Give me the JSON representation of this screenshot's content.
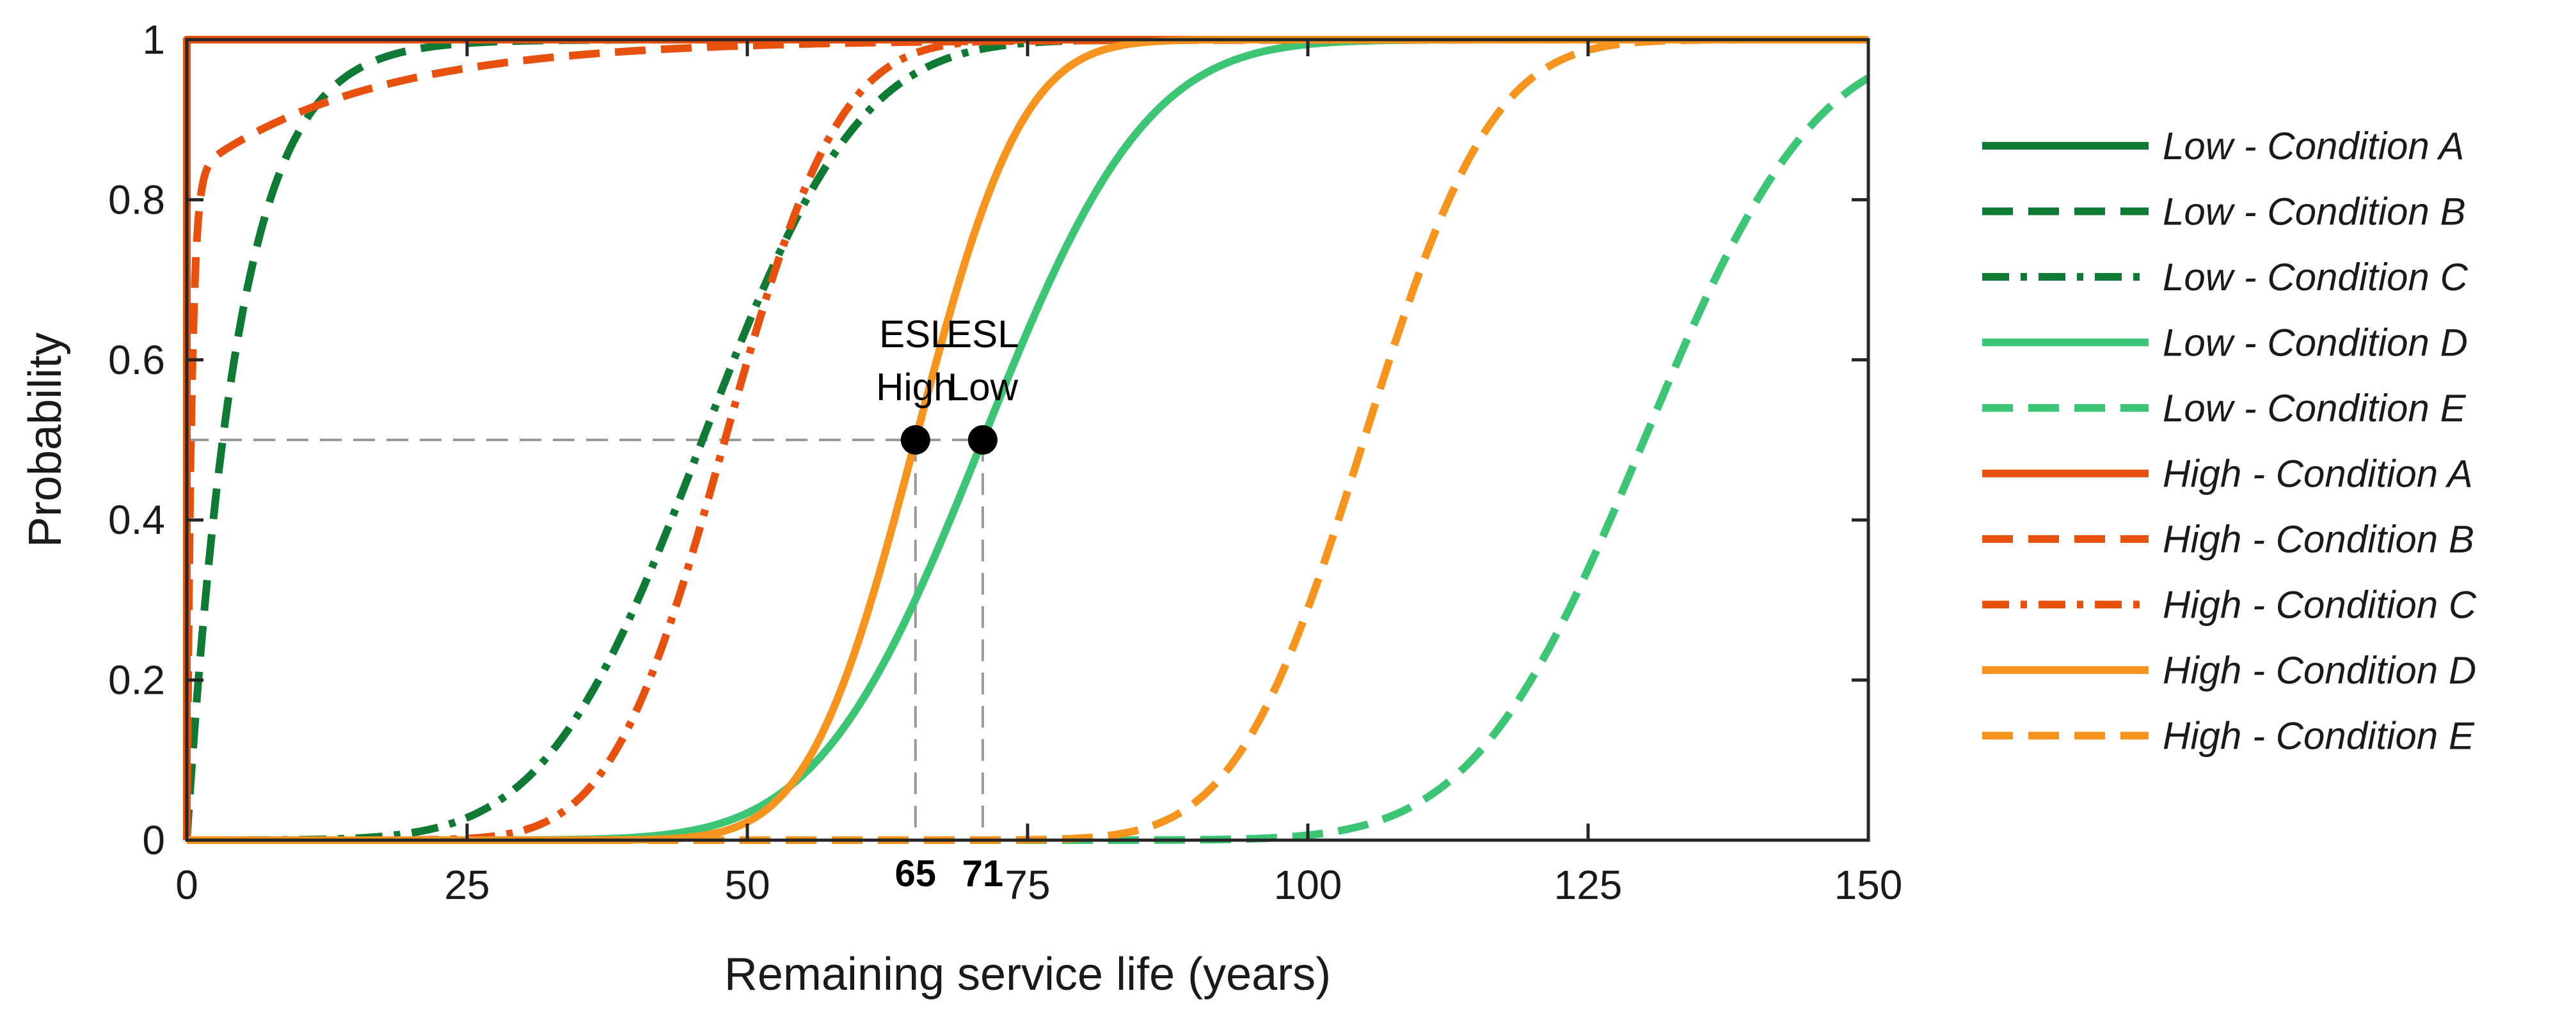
{
  "chart_data": {
    "type": "line",
    "title": "",
    "xlabel": "Remaining service life (years)",
    "ylabel": "Probability",
    "xlim": [
      0,
      150
    ],
    "ylim": [
      0,
      1
    ],
    "xticks": [
      0,
      25,
      50,
      75,
      100,
      125,
      150
    ],
    "yticks": [
      0,
      0.2,
      0.4,
      0.6,
      0.8,
      1
    ],
    "xtick_labels": [
      "0",
      "25",
      "50",
      "75",
      "100",
      "125",
      "150"
    ],
    "ytick_labels": [
      "0",
      "0.2",
      "0.4",
      "0.6",
      "0.8",
      "1"
    ],
    "grid": false,
    "legend_position": "outside-right",
    "series": [
      {
        "name": "Low - Condition A",
        "color": "#0e7a34",
        "dash": "solid",
        "dist": "step",
        "median": 0
      },
      {
        "name": "Low - Condition B",
        "color": "#0e7a34",
        "dash": "dashed",
        "dist": "exp",
        "median": 3.2
      },
      {
        "name": "Low - Condition C",
        "color": "#0e7a34",
        "dash": "dashdot",
        "dist": "normal",
        "median": 46,
        "sd": 11
      },
      {
        "name": "Low - Condition D",
        "color": "#3cc574",
        "dash": "solid",
        "dist": "normal",
        "median": 71,
        "sd": 11.5
      },
      {
        "name": "Low - Condition E",
        "color": "#3cc574",
        "dash": "dashed",
        "dist": "normal",
        "median": 130,
        "sd": 12
      },
      {
        "name": "High - Condition A",
        "color": "#e8500e",
        "dash": "solid",
        "dist": "step",
        "median": 0
      },
      {
        "name": "High - Condition B",
        "color": "#e8500e",
        "dash": "dashed",
        "dist": "mix",
        "median": 0.8
      },
      {
        "name": "High - Condition C",
        "color": "#e8500e",
        "dash": "dashdot",
        "dist": "normal",
        "median": 48,
        "sd": 8
      },
      {
        "name": "High - Condition D",
        "color": "#f7941d",
        "dash": "solid",
        "dist": "normal",
        "median": 65,
        "sd": 7.5
      },
      {
        "name": "High - Condition E",
        "color": "#f7941d",
        "dash": "dashed",
        "dist": "normal",
        "median": 105,
        "sd": 9
      }
    ],
    "reference_line": {
      "y": 0.5,
      "color": "#999999"
    },
    "esl_points": [
      {
        "x": 65,
        "y": 0.5,
        "label_top": "ESL",
        "label_bottom": "High",
        "value_label": "65"
      },
      {
        "x": 71,
        "y": 0.5,
        "label_top": "ESL",
        "label_bottom": "Low",
        "value_label": "71"
      }
    ]
  }
}
